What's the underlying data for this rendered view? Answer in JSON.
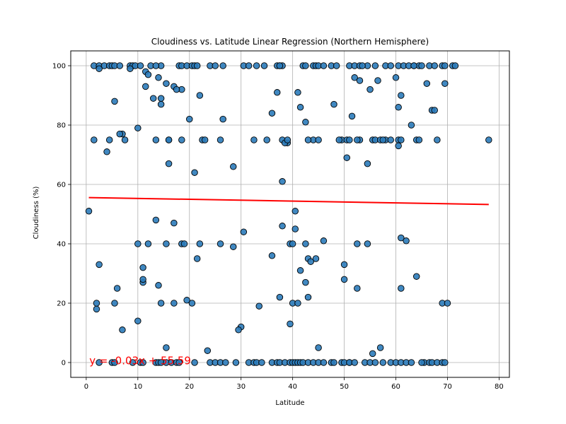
{
  "chart_data": {
    "type": "scatter",
    "title": "Cloudiness vs. Latitude Linear Regression (Northern Hemisphere)",
    "xlabel": "Latitude",
    "ylabel": "Cloudiness (%)",
    "xlim": [
      -3,
      82
    ],
    "ylim": [
      -5,
      105
    ],
    "xticks": [
      0,
      10,
      20,
      30,
      40,
      50,
      60,
      70,
      80
    ],
    "yticks": [
      0,
      20,
      40,
      60,
      80,
      100
    ],
    "grid": true,
    "colors": {
      "point_fill": "#2b7bba",
      "point_edge": "#000000",
      "line": "#ff0000",
      "equation": "#ff0000"
    },
    "regression": {
      "slope": -0.03,
      "intercept": 55.59,
      "x_range": [
        0.5,
        78
      ],
      "equation": "y = -0.03x + 55.59"
    },
    "x": [
      1.5,
      2.5,
      3.5,
      4.5,
      5,
      5.5,
      6.5,
      8.5,
      9,
      9.5,
      10.5,
      12.5,
      14.5,
      18,
      18.5,
      19.5,
      20.5,
      21,
      24,
      26.5,
      30.5,
      31.5,
      34.5,
      37,
      37.5,
      38,
      42,
      42.5,
      44,
      44.5,
      45,
      46,
      47.5,
      48.5,
      51,
      52,
      53,
      54.5,
      56,
      58,
      59,
      60.5,
      61.5,
      62.5,
      63.5,
      64.5,
      66.5,
      67.5,
      69,
      69.5,
      71,
      71.5,
      2.5,
      8.5,
      11.5,
      12,
      13,
      14,
      15.5,
      17,
      18.5,
      22,
      25,
      33,
      37,
      41,
      44,
      52,
      53,
      55,
      56.5,
      60,
      61,
      63.5,
      65,
      66,
      67,
      1.5,
      4.5,
      7,
      7.5,
      13.5,
      16,
      22.5,
      23,
      26,
      32.5,
      35,
      38,
      39,
      43,
      45,
      49.5,
      50.5,
      51,
      53,
      55.5,
      56,
      57,
      58,
      59,
      60.5,
      61,
      64,
      64.5,
      78,
      4,
      5.5,
      6.5,
      10,
      11.5,
      13.5,
      14.5,
      14.5,
      16,
      16,
      17.5,
      18.5,
      20,
      21.5,
      26.5,
      28.5,
      36,
      37.5,
      38,
      38.5,
      39,
      40.5,
      41.5,
      42.5,
      48,
      49,
      52.5,
      54.5,
      57.5,
      60.5,
      63,
      67.5,
      68,
      69.5,
      0.5,
      2,
      10,
      11,
      12,
      13.5,
      15.5,
      17,
      18.5,
      20.5,
      21.5,
      22,
      26,
      28.5,
      30,
      36,
      37.5,
      39.5,
      40,
      40.5,
      41.5,
      42.5,
      43,
      44.5,
      46,
      50,
      50.5,
      51.5,
      52.5,
      53.5,
      60.5,
      61,
      62,
      64,
      2,
      2.5,
      5.5,
      6,
      7,
      10,
      11,
      11,
      14,
      14.5,
      15.5,
      17,
      19,
      19.5,
      21,
      23.5,
      29.5,
      30.5,
      33.5,
      36,
      38,
      39.5,
      40,
      41,
      42.5,
      43,
      43.5,
      45,
      50,
      51,
      52.5,
      54.5,
      55.5,
      57,
      61,
      65.5,
      69,
      70,
      2.5,
      5,
      5.5,
      9,
      10.5,
      11,
      13.5,
      14,
      14.5,
      15.5,
      16.5,
      17.5,
      18,
      21,
      24,
      25,
      26,
      27,
      29,
      31.5,
      32.5,
      33,
      34,
      37,
      37.5,
      38.5,
      39.5,
      40,
      40.5,
      41,
      41.5,
      42,
      43,
      44,
      45,
      46,
      47.5,
      48,
      49.5,
      50,
      51,
      52,
      54,
      55,
      56,
      57.5,
      59,
      60,
      61,
      62,
      63,
      65,
      66.5,
      67,
      68,
      69,
      69.5
    ],
    "y": [
      100,
      100,
      100,
      100,
      100,
      100,
      100,
      100,
      100,
      100,
      100,
      100,
      100,
      100,
      100,
      100,
      100,
      100,
      100,
      100,
      100,
      100,
      100,
      100,
      100,
      100,
      100,
      100,
      100,
      100,
      100,
      100,
      100,
      100,
      100,
      100,
      100,
      100,
      100,
      100,
      100,
      100,
      100,
      100,
      100,
      100,
      100,
      100,
      100,
      100,
      100,
      100,
      99,
      99,
      98,
      97,
      89,
      96,
      94,
      93,
      92,
      90,
      100,
      100,
      91,
      91,
      75,
      96,
      95,
      92,
      95,
      96,
      90,
      100,
      100,
      94,
      85,
      75,
      75,
      77,
      75,
      75,
      75,
      75,
      75,
      75,
      75,
      75,
      75,
      74,
      75,
      75,
      75,
      75,
      75,
      75,
      75,
      75,
      75,
      75,
      75,
      75,
      75,
      75,
      75,
      75,
      71,
      88,
      77,
      79,
      93,
      100,
      89,
      87,
      75,
      67,
      92,
      75,
      82,
      100,
      82,
      66,
      84,
      100,
      61,
      74,
      75,
      45,
      86,
      81,
      87,
      75,
      75,
      67,
      75,
      86,
      80,
      85,
      75,
      94,
      51,
      18,
      14,
      27,
      40,
      48,
      40,
      47,
      40,
      20,
      35,
      40,
      40,
      39,
      12,
      36,
      22,
      40,
      40,
      51,
      31,
      40,
      35,
      35,
      41,
      33,
      69,
      83,
      40,
      100,
      73,
      42,
      41,
      29,
      20,
      33,
      20,
      25,
      11,
      40,
      32,
      28,
      26,
      20,
      5,
      20,
      40,
      21,
      64,
      4,
      11,
      44,
      19,
      0,
      46,
      13,
      20,
      20,
      27,
      22,
      34,
      5,
      28,
      0,
      25,
      40,
      3,
      5,
      25,
      0,
      20,
      20,
      0,
      0,
      0,
      0,
      0,
      0,
      0,
      0,
      0,
      0,
      0,
      0,
      0,
      0,
      0,
      0,
      0,
      0,
      0,
      0,
      0,
      0,
      0,
      0,
      0,
      0,
      0,
      0,
      0,
      0,
      0,
      0,
      0,
      0,
      0,
      0,
      0,
      0,
      0,
      0,
      0,
      0,
      0,
      0,
      0,
      0,
      0,
      0,
      0,
      0,
      0,
      0,
      0,
      0,
      0,
      0,
      0
    ]
  }
}
